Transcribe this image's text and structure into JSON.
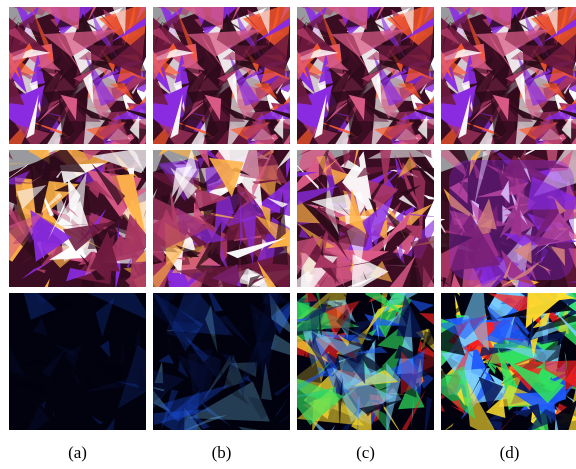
{
  "columns": [
    {
      "label": "(a)"
    },
    {
      "label": "(b)"
    },
    {
      "label": "(c)"
    },
    {
      "label": "(d)"
    }
  ],
  "rows": [
    {
      "kind": "render",
      "desc_palette": [
        "#2a0a18",
        "#6e1a3e",
        "#a83662",
        "#d95a86",
        "#ffffff",
        "#8a2be2",
        "#ff5a2a"
      ]
    },
    {
      "kind": "render-variant",
      "desc_palette": [
        "#2a0a18",
        "#6e1a3e",
        "#a83662",
        "#d95a86",
        "#ffffff",
        "#8a2be2",
        "#ffb347"
      ]
    },
    {
      "kind": "error-map",
      "desc_palette": [
        "#020212",
        "#0a1a5a",
        "#1e5aff",
        "#7ad0ff",
        "#30e060",
        "#ffe030",
        "#ff2020"
      ]
    }
  ],
  "error_intensity": [
    0.05,
    0.35,
    0.75,
    1.0
  ]
}
